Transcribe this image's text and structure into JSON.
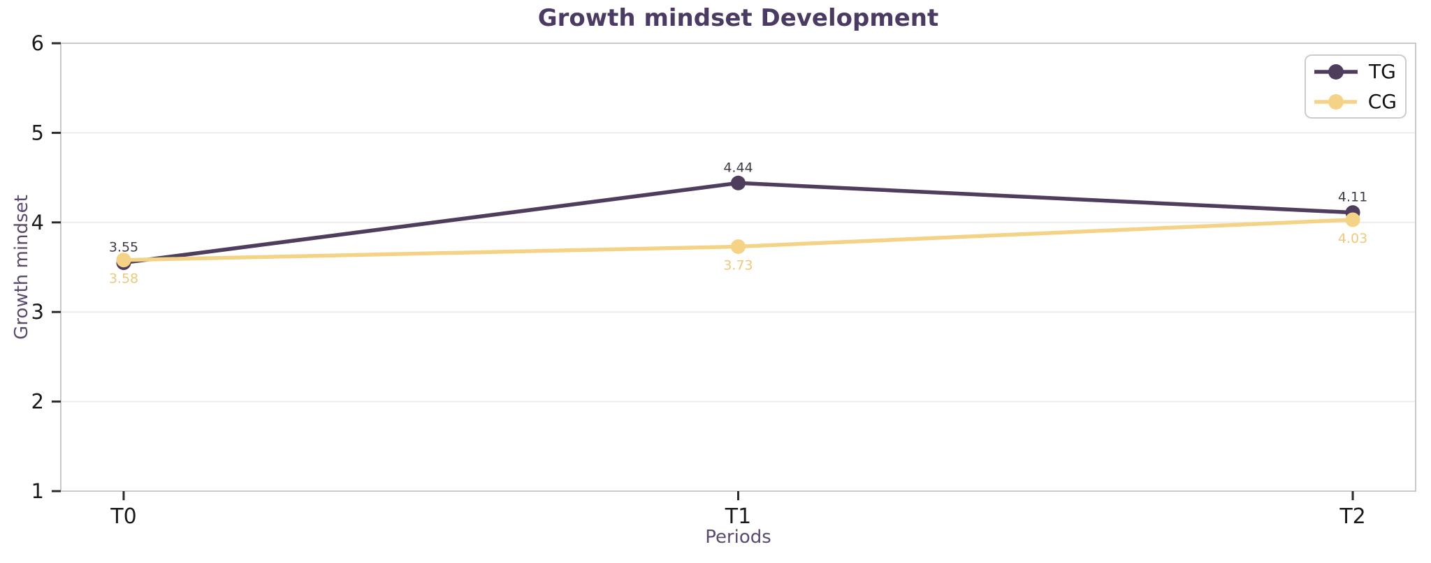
{
  "chart_data": {
    "type": "line",
    "title": "Growth mindset Development",
    "xlabel": "Periods",
    "ylabel": "Growth mindset",
    "categories": [
      "T0",
      "T1",
      "T2"
    ],
    "series": [
      {
        "name": "TG",
        "values": [
          3.55,
          4.44,
          4.11
        ],
        "labels": [
          "3.55",
          "4.44",
          "4.11"
        ],
        "color": "#4e3d5c",
        "label_color": "#3f3a47",
        "label_position": "above"
      },
      {
        "name": "CG",
        "values": [
          3.58,
          3.73,
          4.03
        ],
        "labels": [
          "3.58",
          "3.73",
          "4.03"
        ],
        "color": "#f5d386",
        "label_color": "#eec87c",
        "label_position": "below"
      }
    ],
    "ylim": [
      1,
      6
    ],
    "yticks": [
      1,
      2,
      3,
      4,
      5,
      6
    ],
    "grid": true,
    "legend_position": "upper right",
    "legend_labels": [
      "TG",
      "CG"
    ]
  },
  "colors": {
    "title": "#4b3a61",
    "axis_label": "#5a4a6c",
    "tick_label": "#1a1a1a",
    "tick_mark": "#2b2b2b",
    "spine": "#c9c9c9",
    "grid": "#ececec",
    "background": "#ffffff",
    "tg_accent": "#4e3d5c",
    "cg_accent": "#f5d386"
  }
}
